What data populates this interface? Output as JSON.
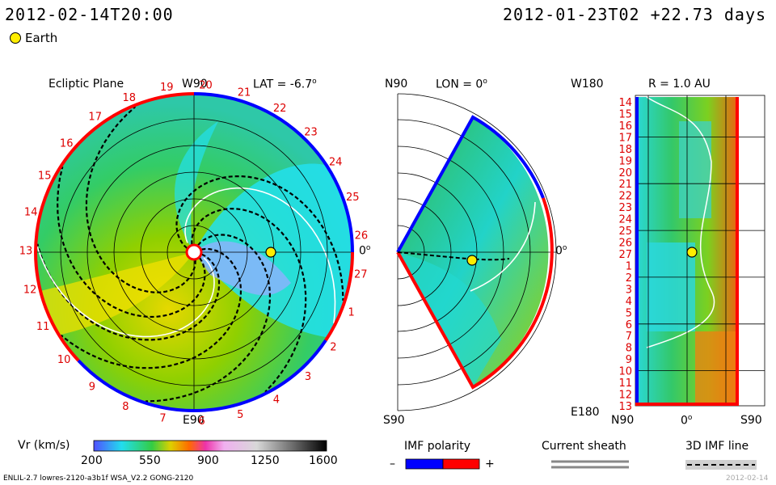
{
  "header": {
    "left_time": "2012-02-14T20:00",
    "right_time": "2012-01-23T02 +22.73 days",
    "legend_label": "Earth"
  },
  "panels": {
    "ecliptic": {
      "title": "Ecliptic Plane",
      "lat_label": "LAT = -6.7",
      "top_label": "W90",
      "bottom_label": "E90",
      "right_label": "0",
      "degree_symbol": "o"
    },
    "meridional": {
      "top_label": "N90",
      "lon_label": "LON = 0",
      "bottom_label": "S90",
      "right_label": "0"
    },
    "radial": {
      "top_left_label": "W180",
      "title": "R = 1.0 AU",
      "bottom_left_label": "E180",
      "x_left": "N90",
      "x_mid": "0",
      "x_right": "S90"
    }
  },
  "carrington_ring": [
    "20",
    "21",
    "22",
    "23",
    "24",
    "25",
    "26",
    "27",
    "1",
    "2",
    "3",
    "4",
    "5",
    "6",
    "7",
    "8",
    "9",
    "10",
    "11",
    "12",
    "13",
    "14",
    "15",
    "16",
    "17",
    "18",
    "19"
  ],
  "carrington_side": [
    "14",
    "15",
    "16",
    "17",
    "18",
    "19",
    "20",
    "21",
    "22",
    "23",
    "24",
    "25",
    "26",
    "27",
    "1",
    "2",
    "3",
    "4",
    "5",
    "6",
    "7",
    "8",
    "9",
    "10",
    "11",
    "12",
    "13"
  ],
  "colorbar": {
    "label": "Vr (km/s)",
    "ticks": [
      "200",
      "550",
      "900",
      "1250",
      "1600"
    ],
    "min": 200,
    "max": 1600
  },
  "legend": {
    "imf_title": "IMF polarity",
    "imf_minus": "–",
    "imf_plus": "+",
    "sheath_title": "Current sheath",
    "imf3d_title": "3D IMF line"
  },
  "footer": {
    "left": "ENLIL-2.7 lowres-2120-a3b1f WSA_V2.2 GONG-2120",
    "right": "2012-02-14"
  },
  "colors": {
    "imf_negative": "#0000ff",
    "imf_positive": "#ff0000",
    "earth": "#ffee00",
    "axis_red": "#dd0000"
  }
}
